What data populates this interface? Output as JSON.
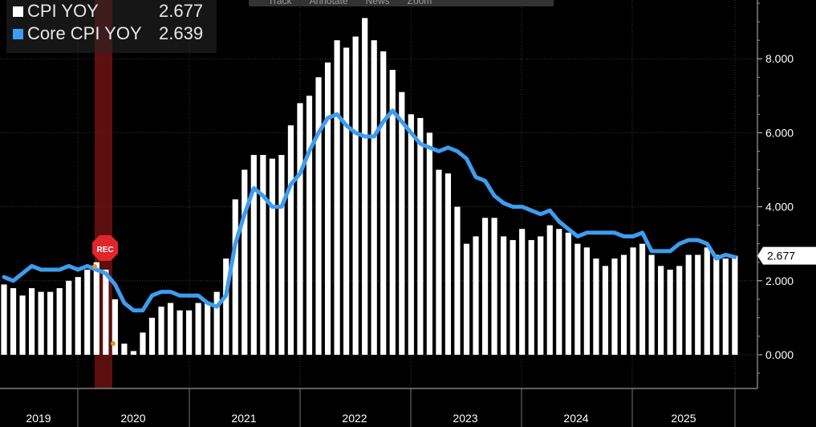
{
  "legend": [
    {
      "name": "CPI YOY",
      "value": "2.677",
      "color": "#ffffff"
    },
    {
      "name": "Core CPI YOY",
      "value": "2.639",
      "color": "#3d9df0"
    }
  ],
  "toolbar": {
    "items": [
      "Track",
      "Annotate",
      "News",
      "Zoom"
    ]
  },
  "recession_label": "REC",
  "last_value_label": "2.677",
  "chart_data": {
    "type": "bar",
    "x_label_years": [
      "2019",
      "2020",
      "2021",
      "2022",
      "2023",
      "2024",
      "2025"
    ],
    "ylim": [
      -0.8,
      9.5
    ],
    "y_ticks": [
      "0.000",
      "2.000",
      "4.000",
      "6.000",
      "8.000"
    ],
    "y_tick_values": [
      0,
      2,
      4,
      6,
      8
    ],
    "series": [
      {
        "name": "CPI YOY",
        "kind": "bar",
        "color": "#ffffff",
        "values": [
          1.9,
          1.8,
          1.6,
          1.8,
          1.7,
          1.7,
          1.8,
          2.0,
          2.1,
          2.3,
          2.5,
          2.3,
          1.5,
          0.3,
          0.1,
          0.6,
          1.0,
          1.3,
          1.4,
          1.2,
          1.2,
          1.4,
          1.4,
          1.7,
          2.6,
          4.2,
          5.0,
          5.4,
          5.4,
          5.3,
          5.4,
          6.2,
          6.8,
          7.0,
          7.5,
          7.9,
          8.5,
          8.3,
          8.6,
          9.1,
          8.5,
          8.2,
          7.7,
          7.1,
          6.5,
          6.4,
          6.0,
          5.0,
          4.9,
          4.0,
          3.0,
          3.2,
          3.7,
          3.7,
          3.2,
          3.1,
          3.4,
          3.1,
          3.2,
          3.5,
          3.4,
          3.3,
          3.0,
          2.9,
          2.6,
          2.4,
          2.6,
          2.7,
          2.9,
          3.0,
          2.7,
          2.4,
          2.3,
          2.4,
          2.7,
          2.7,
          2.9,
          2.7,
          2.6,
          2.677
        ],
        "start": "2019-07"
      },
      {
        "name": "Core CPI YOY",
        "kind": "line",
        "color": "#3d9df0",
        "values": [
          2.1,
          2.0,
          2.2,
          2.4,
          2.3,
          2.3,
          2.3,
          2.4,
          2.3,
          2.4,
          2.3,
          2.2,
          1.9,
          1.4,
          1.2,
          1.2,
          1.6,
          1.7,
          1.7,
          1.6,
          1.6,
          1.6,
          1.4,
          1.3,
          1.6,
          3.0,
          3.8,
          4.5,
          4.3,
          4.0,
          4.0,
          4.6,
          4.9,
          5.5,
          6.0,
          6.4,
          6.5,
          6.2,
          6.0,
          5.9,
          5.9,
          6.3,
          6.6,
          6.3,
          6.0,
          5.7,
          5.6,
          5.5,
          5.6,
          5.5,
          5.3,
          4.8,
          4.7,
          4.3,
          4.1,
          4.0,
          4.0,
          3.9,
          3.8,
          3.9,
          3.6,
          3.4,
          3.2,
          3.3,
          3.3,
          3.3,
          3.3,
          3.2,
          3.2,
          3.3,
          2.8,
          2.8,
          2.8,
          3.0,
          3.1,
          3.1,
          3.0,
          2.6,
          2.7,
          2.639
        ],
        "start": "2019-07"
      }
    ],
    "recession_band": {
      "start_index": 8,
      "end_index": 9
    }
  }
}
